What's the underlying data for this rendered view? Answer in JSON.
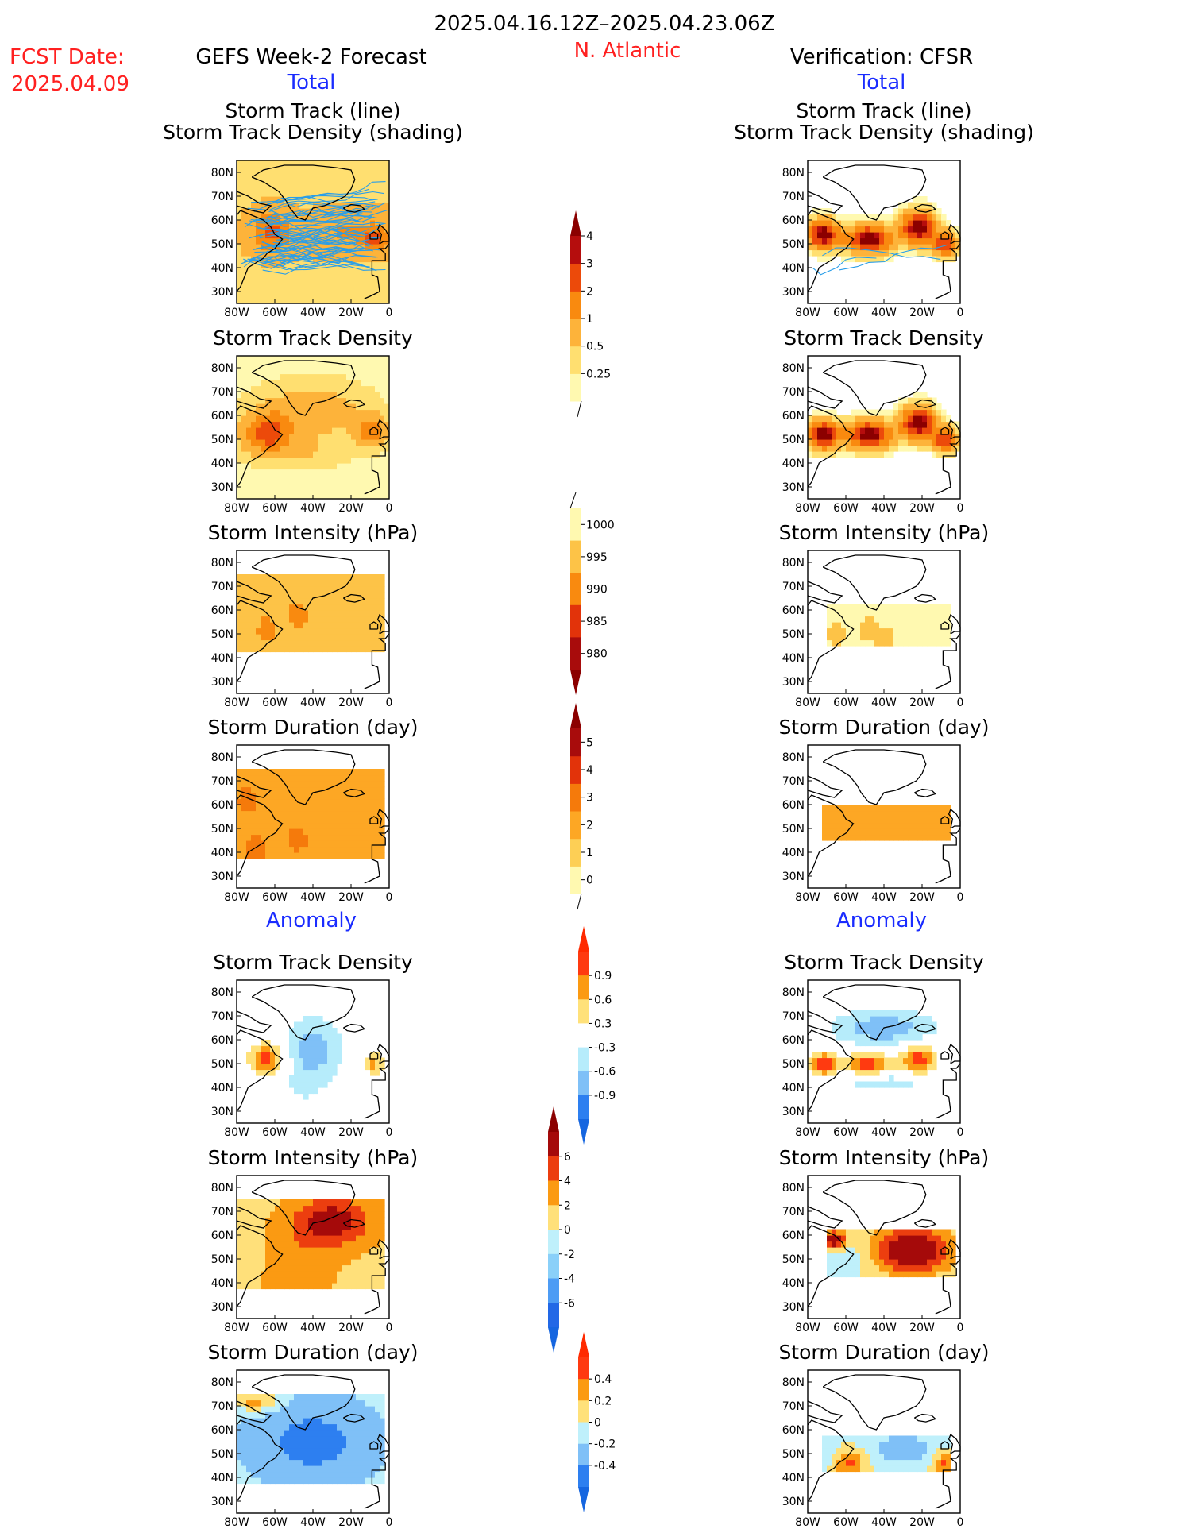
{
  "header": {
    "period": "2025.04.16.12Z–2025.04.23.06Z",
    "fcst_label": "FCST Date:",
    "fcst_date": "2025.04.09",
    "region": "N. Atlantic",
    "left_title": "GEFS Week-2 Forecast",
    "right_title": "Verification: CFSR",
    "total_label": "Total",
    "anomaly_label": "Anomaly"
  },
  "chart_data": {
    "type": "heatmap",
    "lon_ticks": [
      "80W",
      "60W",
      "40W",
      "20W",
      "0"
    ],
    "lat_ticks": [
      "80N",
      "70N",
      "60N",
      "50N",
      "40N",
      "30N"
    ],
    "xlim": [
      -80,
      0
    ],
    "ylim": [
      25,
      85
    ],
    "panels": [
      {
        "title": "Storm Track (line)",
        "title2": "Storm Track Density (shading)",
        "fcst": {
          "scale": "density",
          "blobs": [
            [
              -62,
              55,
              10,
              8,
              2.4
            ],
            [
              -20,
              55,
              28,
              8,
              1.2
            ],
            [
              -8,
              52,
              6,
              5,
              1.8
            ]
          ],
          "base": 0.9,
          "tracks": true
        },
        "verif": {
          "scale": "density",
          "blobs": [
            [
              -72,
              54,
              8,
              6,
              5
            ],
            [
              -48,
              52,
              12,
              6,
              5
            ],
            [
              -22,
              57,
              9,
              7,
              5
            ],
            [
              -8,
              50,
              6,
              5,
              4
            ]
          ],
          "tracks": true
        }
      },
      {
        "title": "Storm Track Density",
        "fcst": {
          "scale": "density",
          "blobs": [
            [
              -64,
              53,
              12,
              8,
              3.2
            ],
            [
              -40,
              62,
              24,
              10,
              1.3
            ],
            [
              -10,
              54,
              8,
              6,
              2.4
            ],
            [
              -45,
              45,
              20,
              6,
              0.6
            ]
          ],
          "base": 0.4
        },
        "verif": {
          "scale": "density",
          "blobs": [
            [
              -72,
              52,
              8,
              6,
              5
            ],
            [
              -48,
              52,
              12,
              6,
              5
            ],
            [
              -22,
              57,
              9,
              7,
              5
            ],
            [
              -8,
              50,
              6,
              5,
              4
            ]
          ]
        }
      },
      {
        "title": "Storm Intensity (hPa)",
        "fcst": {
          "scale": "intensity",
          "mask": [
            -80,
            -2,
            42,
            75
          ],
          "value": 992,
          "spots": [
            [
              -64,
              52,
              988
            ],
            [
              -48,
              58,
              989
            ],
            [
              -72,
              46,
              990
            ]
          ]
        },
        "verif": {
          "scale": "intensity",
          "mask": [
            -70,
            -5,
            44,
            62
          ],
          "value": 995,
          "spots": [
            [
              -65,
              50,
              991
            ],
            [
              -48,
              52,
              990
            ],
            [
              -40,
              48,
              992
            ],
            [
              -20,
              50,
              998
            ],
            [
              -10,
              46,
              998
            ]
          ]
        }
      },
      {
        "title": "Storm Duration (day)",
        "fcst": {
          "scale": "duration",
          "mask": [
            -80,
            -2,
            38,
            75
          ],
          "value": 2.5,
          "spots": [
            [
              -70,
              42,
              3.5
            ],
            [
              -48,
              46,
              3.5
            ],
            [
              -74,
              62,
              3.5
            ]
          ]
        },
        "verif": {
          "scale": "duration",
          "mask": [
            -72,
            -5,
            44,
            60
          ],
          "value": 2.6,
          "spots": []
        }
      },
      {
        "title": "Storm Track Density",
        "anom": true,
        "fcst": {
          "scale": "stdanom",
          "blobs": [
            [
              -64,
              52,
              9,
              7,
              1.1
            ],
            [
              -8,
              50,
              5,
              5,
              0.7
            ],
            [
              -40,
              56,
              16,
              14,
              -0.8
            ],
            [
              -45,
              40,
              10,
              6,
              -0.3
            ]
          ]
        },
        "verif": {
          "scale": "stdanom",
          "blobs": [
            [
              -72,
              50,
              8,
              5,
              1.1
            ],
            [
              -48,
              50,
              12,
              5,
              1.1
            ],
            [
              -22,
              52,
              9,
              6,
              1.1
            ],
            [
              -40,
              65,
              28,
              8,
              -0.8
            ],
            [
              -40,
              42,
              24,
              4,
              -0.5
            ]
          ]
        }
      },
      {
        "title": "Storm Intensity (hPa)",
        "fcst": {
          "scale": "intanom",
          "mask": [
            -80,
            -2,
            38,
            75
          ],
          "blobs": [
            [
              -30,
              66,
              20,
              10,
              6
            ],
            [
              -70,
              52,
              8,
              10,
              -1
            ],
            [
              -50,
              48,
              20,
              14,
              2
            ]
          ],
          "base": 1.5
        },
        "verif": {
          "scale": "intanom",
          "mask": [
            -70,
            -2,
            43,
            62
          ],
          "blobs": [
            [
              -25,
              54,
              20,
              10,
              9
            ],
            [
              -60,
              50,
              10,
              6,
              -2
            ],
            [
              -66,
              58,
              6,
              4,
              8
            ]
          ],
          "base": 0
        }
      },
      {
        "title": "Storm Duration (day)",
        "fcst": {
          "scale": "duranom",
          "mask": [
            -80,
            -2,
            38,
            75
          ],
          "blobs": [
            [
              -70,
              72,
              12,
              4,
              0.45
            ],
            [
              -40,
              55,
              30,
              16,
              -0.35
            ]
          ],
          "base": -0.15
        },
        "verif": {
          "scale": "duranom",
          "mask": [
            -72,
            -5,
            42,
            57
          ],
          "blobs": [
            [
              -58,
              46,
              8,
              5,
              0.45
            ],
            [
              -8,
              46,
              6,
              5,
              0.45
            ],
            [
              -30,
              52,
              16,
              6,
              -0.4
            ],
            [
              -70,
              50,
              6,
              5,
              -0.15
            ]
          ],
          "base": 0
        }
      }
    ],
    "colorbars": [
      {
        "name": "density",
        "ticks": [
          "0.25",
          "0.5",
          "1",
          "2",
          "3",
          "4"
        ],
        "colors": [
          "#fff9b0",
          "#ffdf70",
          "#fdb33a",
          "#f98a0f",
          "#ec4a0a",
          "#b50d0d"
        ],
        "top_arrow": "#8b0000"
      },
      {
        "name": "intensity",
        "ticks": [
          "1000",
          "995",
          "990",
          "985",
          "980"
        ],
        "colors": [
          "#fff9b0",
          "#fdc347",
          "#f98a0f",
          "#e2330a",
          "#a80c0c"
        ],
        "bottom_arrow": "#8b0000"
      },
      {
        "name": "duration",
        "ticks": [
          "0",
          "1",
          "2",
          "3",
          "4",
          "5"
        ],
        "colors": [
          "#fff9b0",
          "#fdcf55",
          "#fda724",
          "#f57a0b",
          "#e2330a",
          "#a80c0c"
        ],
        "top_arrow": "#8b0000"
      },
      {
        "name": "stdanom",
        "ticks": [
          "0.9",
          "0.6",
          "0.3",
          "-0.3",
          "-0.6",
          "-0.9"
        ],
        "colors": [
          "#ff3a10",
          "#fb9a12",
          "#ffe17a",
          "#ffffff",
          "#b6ecfb",
          "#7fc0f7",
          "#2d7ff0"
        ],
        "top_arrow": "#ff2a00",
        "bottom_arrow": "#1666e0"
      },
      {
        "name": "intanom",
        "ticks": [
          "6",
          "4",
          "2",
          "0",
          "-2",
          "-4",
          "-6"
        ],
        "colors": [
          "#a50a0a",
          "#ec3e0f",
          "#fb9a12",
          "#ffe07a",
          "#bff0fb",
          "#8ad0f9",
          "#4d9cf4",
          "#2268e6"
        ],
        "top_arrow": "#8b0000",
        "bottom_arrow": "#1666e0"
      },
      {
        "name": "duranom",
        "ticks": [
          "0.4",
          "0.2",
          "0",
          "-0.2",
          "-0.4"
        ],
        "colors": [
          "#ff3a10",
          "#fb9a12",
          "#ffe17a",
          "#bff0fb",
          "#7fc0f7",
          "#2d7ff0"
        ],
        "top_arrow": "#ff2a00",
        "bottom_arrow": "#1666e0"
      }
    ]
  }
}
